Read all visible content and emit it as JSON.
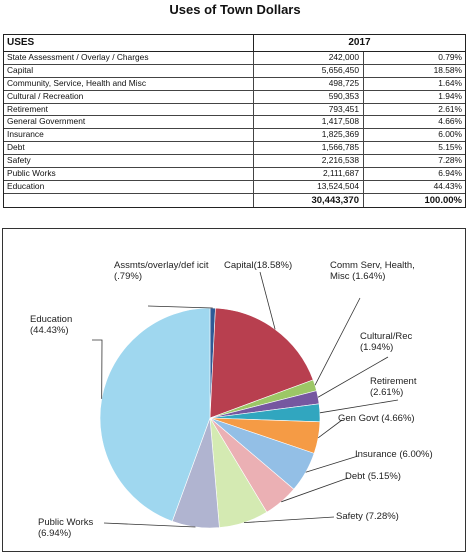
{
  "title": "Uses of Town Dollars",
  "table": {
    "col_uses": "USES",
    "col_year": "2017",
    "rows": [
      {
        "name": "State Assessment / Overlay / Charges",
        "amount": "242,000",
        "pct": "0.79%"
      },
      {
        "name": "Capital",
        "amount": "5,656,450",
        "pct": "18.58%"
      },
      {
        "name": "Community, Service, Health and Misc",
        "amount": "498,725",
        "pct": "1.64%"
      },
      {
        "name": "Cultural / Recreation",
        "amount": "590,353",
        "pct": "1.94%"
      },
      {
        "name": "Retirement",
        "amount": "793,451",
        "pct": "2.61%"
      },
      {
        "name": "General Government",
        "amount": "1,417,508",
        "pct": "4.66%"
      },
      {
        "name": "Insurance",
        "amount": "1,825,369",
        "pct": "6.00%"
      },
      {
        "name": "Debt",
        "amount": "1,566,785",
        "pct": "5.15%"
      },
      {
        "name": "Safety",
        "amount": "2,216,538",
        "pct": "7.28%"
      },
      {
        "name": "Public Works",
        "amount": "2,111,687",
        "pct": "6.94%"
      },
      {
        "name": "Education",
        "amount": "13,524,504",
        "pct": "44.43%"
      }
    ],
    "total_amount": "30,443,370",
    "total_pct": "100.00%"
  },
  "chart_data": {
    "type": "pie",
    "slices": [
      {
        "label": "Assmts/overlay/def icit (.79%)",
        "value": 0.79,
        "color": "#2e5a96"
      },
      {
        "label": "Capital(18.58%)",
        "value": 18.58,
        "color": "#b83f4f"
      },
      {
        "label": "Comm Serv, Health, Misc (1.64%)",
        "value": 1.64,
        "color": "#9cc766"
      },
      {
        "label": "Cultural/Rec (1.94%)",
        "value": 1.94,
        "color": "#7657a0"
      },
      {
        "label": "Retirement (2.61%)",
        "value": 2.61,
        "color": "#31a6bf"
      },
      {
        "label": "Gen Govt (4.66%)",
        "value": 4.66,
        "color": "#f59b45"
      },
      {
        "label": "Insurance (6.00%)",
        "value": 6.0,
        "color": "#93bfe6"
      },
      {
        "label": "Debt (5.15%)",
        "value": 5.15,
        "color": "#ebb0b4"
      },
      {
        "label": "Safety (7.28%)",
        "value": 7.28,
        "color": "#d4eab2"
      },
      {
        "label": "Public Works (6.94%)",
        "value": 6.94,
        "color": "#b0b4d0"
      },
      {
        "label": "Education (44.43%)",
        "value": 44.43,
        "color": "#9fd7ef"
      }
    ]
  }
}
